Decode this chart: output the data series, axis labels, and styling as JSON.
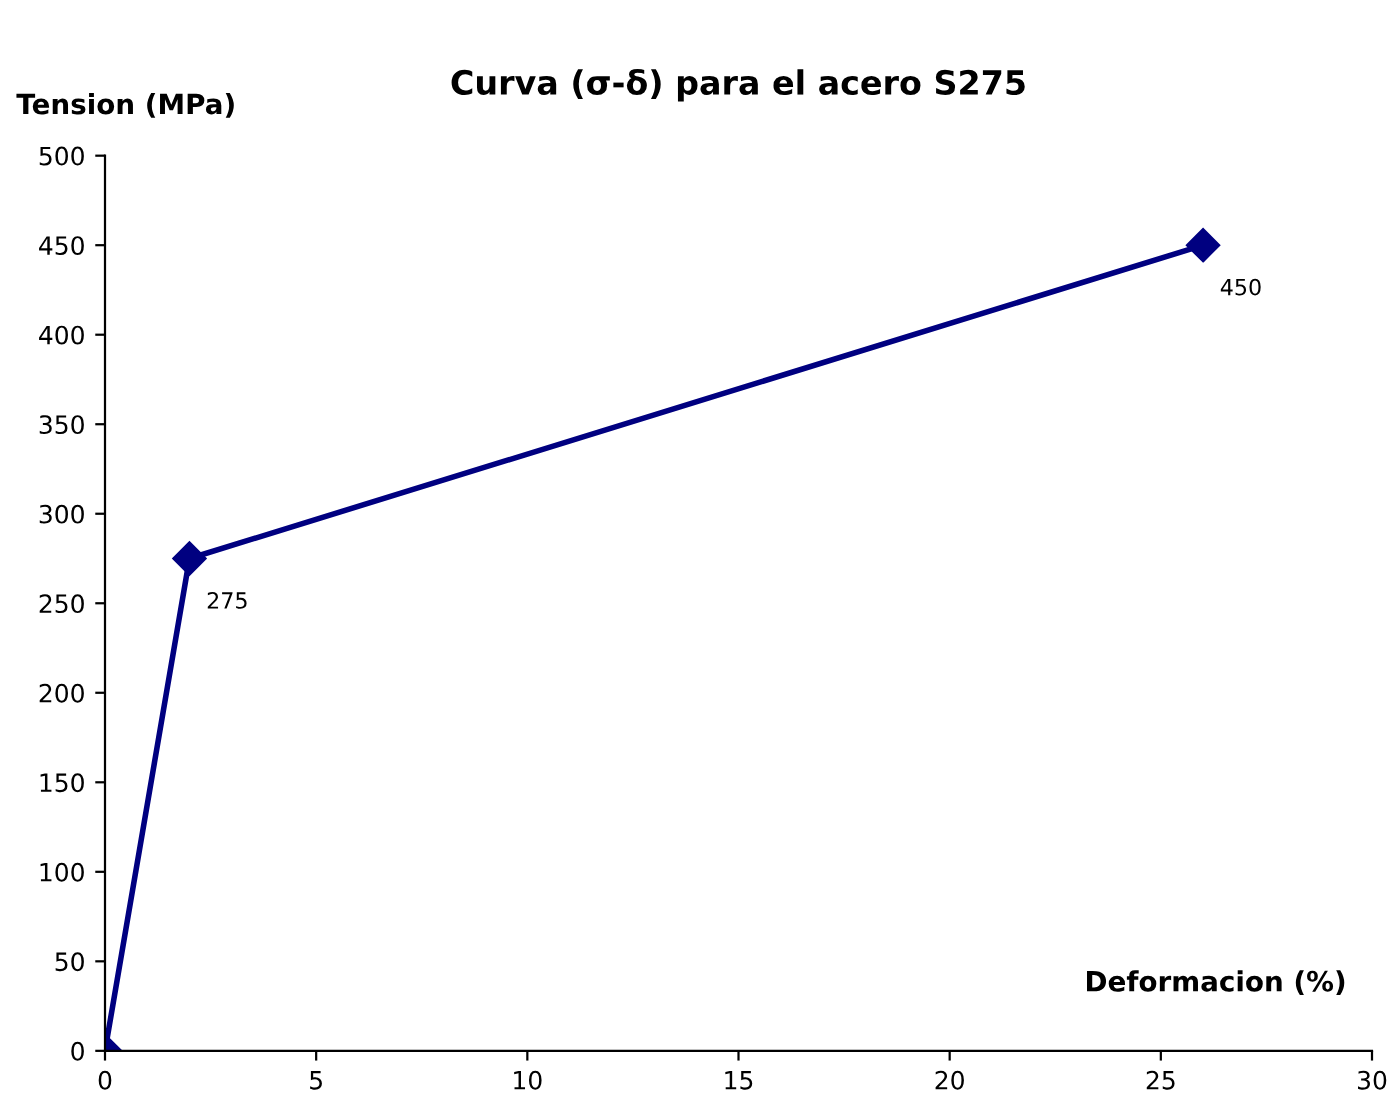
{
  "chart_data": {
    "type": "line",
    "title": "Curva (σ-δ) para el acero S275",
    "xlabel": "Deformacion (%)",
    "ylabel": "Tension (MPa)",
    "x": [
      0,
      2,
      26
    ],
    "series": [
      {
        "color": "#000080",
        "values": [
          0,
          275,
          450
        ],
        "value_labels": [
          null,
          "275",
          "450"
        ]
      }
    ],
    "marker": "diamond",
    "line_style": "solid",
    "xlim": [
      0,
      30
    ],
    "xticks": [
      0,
      5,
      10,
      15,
      20,
      25,
      30
    ],
    "ylim": [
      0,
      500
    ],
    "yticks": [
      0,
      50,
      100,
      150,
      200,
      250,
      300,
      350,
      400,
      450,
      500
    ],
    "grid": false,
    "legend": false
  }
}
